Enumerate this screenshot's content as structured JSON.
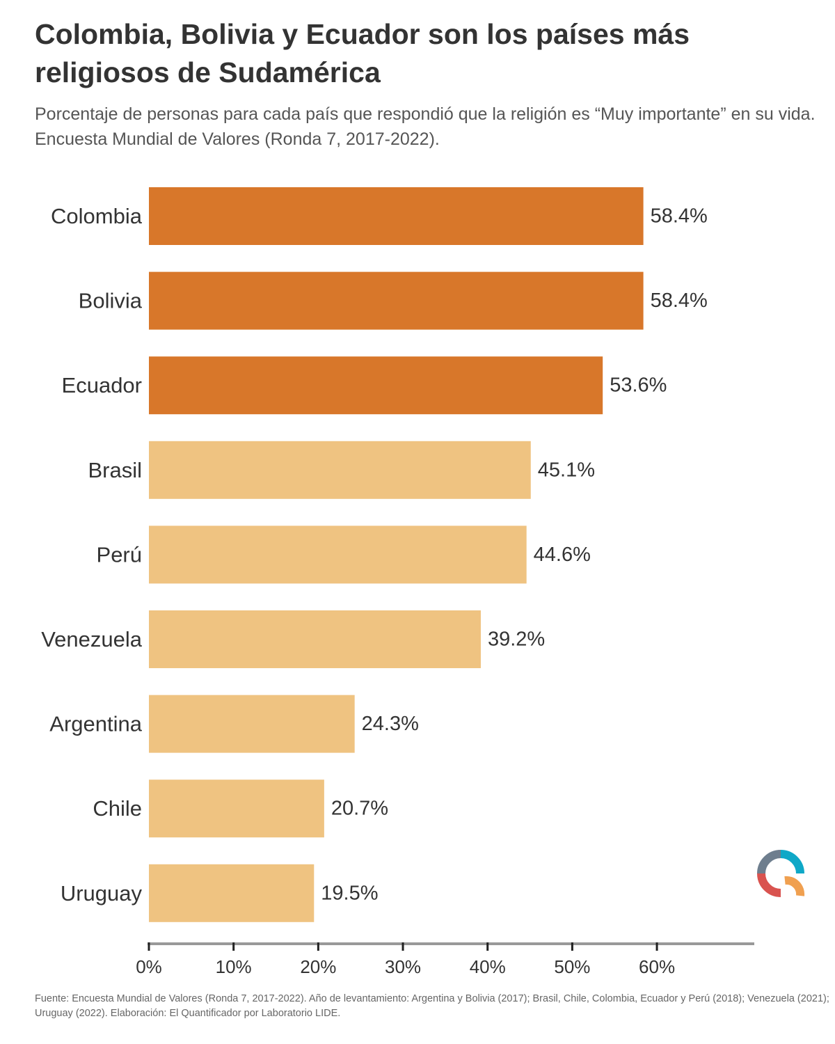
{
  "chart_data": {
    "type": "bar",
    "orientation": "horizontal",
    "title": "Colombia, Bolivia y Ecuador son los países más religiosos de Sudamérica",
    "subtitle": "Porcentaje de personas para cada país que respondió que la religión es “Muy importante” en su vida. Encuesta Mundial de Valores (Ronda 7, 2017-2022).",
    "categories": [
      "Colombia",
      "Bolivia",
      "Ecuador",
      "Brasil",
      "Perú",
      "Venezuela",
      "Argentina",
      "Chile",
      "Uruguay"
    ],
    "values": [
      58.4,
      58.4,
      53.6,
      45.1,
      44.6,
      39.2,
      24.3,
      20.7,
      19.5
    ],
    "value_labels": [
      "58.4%",
      "58.4%",
      "53.6%",
      "45.1%",
      "44.6%",
      "39.2%",
      "24.3%",
      "20.7%",
      "19.5%"
    ],
    "highlighted": [
      true,
      true,
      true,
      false,
      false,
      false,
      false,
      false,
      false
    ],
    "xlim": [
      0,
      71.5
    ],
    "x_ticks": [
      0,
      10,
      20,
      30,
      40,
      50,
      60
    ],
    "x_tick_labels": [
      "0%",
      "10%",
      "20%",
      "30%",
      "40%",
      "50%",
      "60%"
    ],
    "xlabel": "",
    "ylabel": "",
    "grid": false,
    "legend": "none",
    "colors": {
      "highlight": "#D8772A",
      "base": "#EFC381",
      "axis": "#999999",
      "text": "#333333"
    }
  },
  "source": "Fuente: Encuesta Mundial de Valores (Ronda 7, 2017-2022). Año de levantamiento: Argentina y Bolivia (2017); Brasil, Chile, Colombia, Ecuador y Perú (2018); Venezuela (2021); Uruguay (2022). Elaboración: El Quantificador por Laboratorio LIDE.",
  "logo": {
    "icon": "quantificador-q-logo-icon",
    "colors": [
      "#0FA8C7",
      "#6E7E8E",
      "#D9534F",
      "#F0A050"
    ]
  }
}
